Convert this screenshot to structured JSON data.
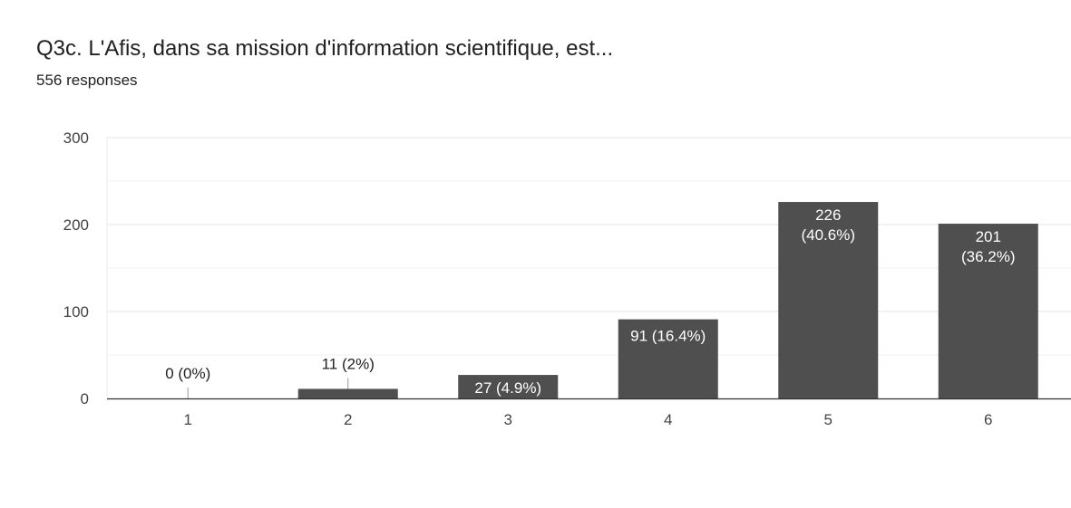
{
  "header": {
    "title": "Q3c. L'Afis, dans sa mission d'information scientifique, est...",
    "responses": "556 responses"
  },
  "colors": {
    "bar": "#4f4f4f",
    "gridline": "#ebebeb",
    "axis": "#333333"
  },
  "chart_data": {
    "type": "bar",
    "title": "Q3c. L'Afis, dans sa mission d'information scientifique, est...",
    "subtitle": "556 responses",
    "categories": [
      "1",
      "2",
      "3",
      "4",
      "5",
      "6"
    ],
    "values": [
      0,
      11,
      27,
      91,
      226,
      201
    ],
    "data_labels": [
      "0 (0%)",
      "11 (2%)",
      "27 (4.9%)",
      "91 (16.4%)",
      "226 (40.6%)",
      "201 (36.2%)"
    ],
    "ylim": [
      0,
      300
    ],
    "yticks": [
      0,
      100,
      200,
      300
    ],
    "grid": true,
    "legend": "none",
    "xlabel": "",
    "ylabel": ""
  }
}
